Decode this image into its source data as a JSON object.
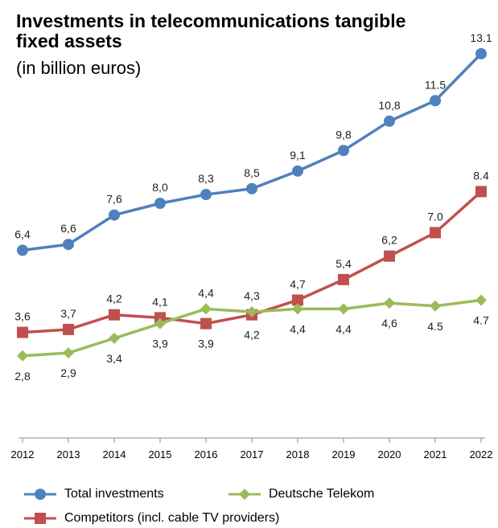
{
  "chart_data": {
    "type": "line",
    "title": "Investments in telecommunications tangible fixed assets",
    "subtitle": "(in billion euros)",
    "x": [
      "2012",
      "2013",
      "2014",
      "2015",
      "2016",
      "2017",
      "2018",
      "2019",
      "2020",
      "2021",
      "2022"
    ],
    "ylim": [
      0,
      14
    ],
    "grid": false,
    "legend_position": "bottom",
    "series": [
      {
        "name": "Total investments",
        "color": "#4f81bd",
        "marker": "circle",
        "values": [
          6.4,
          6.6,
          7.6,
          8.0,
          8.3,
          8.5,
          9.1,
          9.8,
          10.8,
          11.5,
          13.1
        ],
        "labels": [
          "6,4",
          "6,6",
          "7,6",
          "8,0",
          "8,3",
          "8,5",
          "9,1",
          "9,8",
          "10,8",
          "11.5",
          "13.1"
        ],
        "label_side": "above"
      },
      {
        "name": "Competitors (incl. cable TV providers)",
        "color": "#c0504d",
        "marker": "square",
        "values": [
          3.6,
          3.7,
          4.2,
          4.1,
          3.9,
          4.2,
          4.7,
          5.4,
          6.2,
          7.0,
          8.4
        ],
        "labels": [
          "3,6",
          "3,7",
          "4,2",
          "4,1",
          "3,9",
          "4,2",
          "4,7",
          "5,4",
          "6,2",
          "7.0",
          "8.4"
        ],
        "label_side": "mixed"
      },
      {
        "name": "Deutsche Telekom",
        "color": "#9bbb59",
        "marker": "diamond",
        "values": [
          2.8,
          2.9,
          3.4,
          3.9,
          4.4,
          4.3,
          4.4,
          4.4,
          4.6,
          4.5,
          4.7
        ],
        "labels": [
          "2,8",
          "2,9",
          "3,4",
          "3,9",
          "4,4",
          "4,3",
          "4,4",
          "4,4",
          "4,6",
          "4.5",
          "4.7"
        ],
        "label_side": "mixed"
      }
    ]
  }
}
